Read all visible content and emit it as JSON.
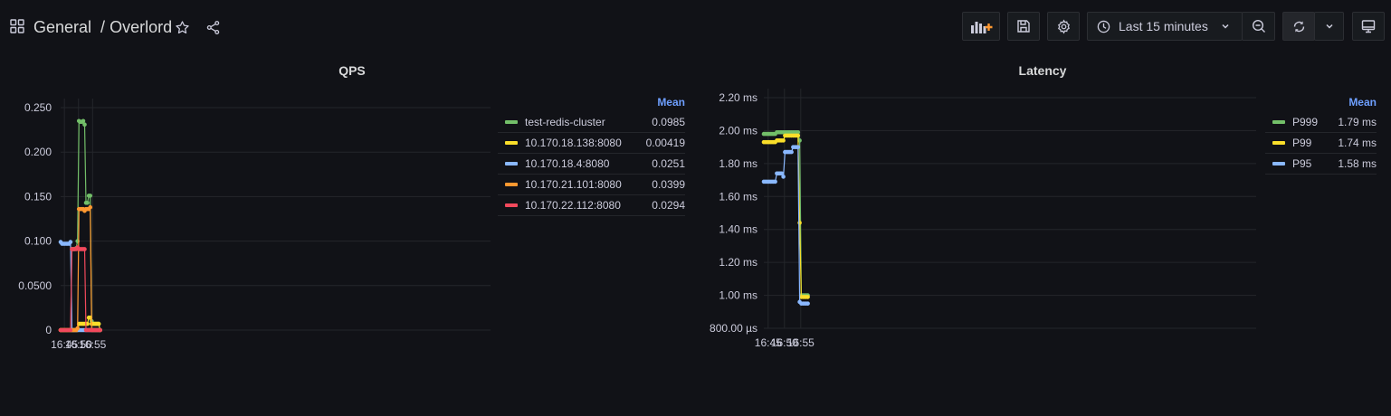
{
  "header": {
    "folder": "General",
    "separator": "/",
    "dashboard": "Overlord",
    "time_range": "Last 15 minutes",
    "icons": {
      "apps": "apps-grid-icon",
      "star": "star-icon",
      "share": "share-icon",
      "add_panel": "add-panel-icon",
      "save": "save-icon",
      "settings": "gear-icon",
      "clock": "clock-icon",
      "chevron": "chevron-down-icon",
      "zoom_out": "zoom-out-icon",
      "refresh": "refresh-icon",
      "tv": "tv-mode-icon"
    }
  },
  "panels": [
    {
      "title": "QPS",
      "legend_header": "Mean"
    },
    {
      "title": "Latency",
      "legend_header": "Mean"
    }
  ],
  "chart_data": [
    {
      "type": "line",
      "title": "QPS",
      "x": [
        "16:43:40",
        "16:44:10",
        "16:44:40",
        "16:45:10",
        "16:45:40",
        "16:46:10",
        "16:46:40",
        "16:47:10",
        "16:47:40",
        "16:48:10",
        "16:48:40",
        "16:49:10",
        "16:49:40",
        "16:50:10",
        "16:50:40",
        "16:51:10",
        "16:51:40",
        "16:52:10",
        "16:52:40",
        "16:53:10",
        "16:53:40",
        "16:54:10",
        "16:54:40",
        "16:55:10",
        "16:55:40",
        "16:56:10",
        "16:56:40",
        "16:57:10",
        "16:57:40"
      ],
      "x_ticks": [
        "16:45",
        "16:50",
        "16:55"
      ],
      "y_ticks": [
        "0",
        "0.0500",
        "0.100",
        "0.150",
        "0.200",
        "0.250"
      ],
      "ylim": [
        0,
        0.25
      ],
      "grid": true,
      "legend_position": "right",
      "series": [
        {
          "name": "test-redis-cluster",
          "mean": "0.0985",
          "color": "#73bf69",
          "values": [
            null,
            null,
            null,
            null,
            null,
            null,
            null,
            null,
            0.091,
            0.091,
            0.091,
            0.092,
            0.1,
            0.235,
            0.234,
            0.234,
            0.235,
            0.231,
            0.143,
            0.143,
            0.151,
            0.151,
            0.01,
            0.007,
            0.007,
            0.007,
            0.007,
            0.007,
            null
          ]
        },
        {
          "name": "10.170.18.138:8080",
          "mean": "0.00419",
          "color": "#fade2a",
          "values": [
            0,
            0,
            0,
            0,
            0,
            0,
            0,
            0,
            0,
            0,
            0,
            0,
            0,
            0.007,
            0.007,
            0.007,
            0.007,
            0.007,
            0.007,
            0.007,
            0.014,
            0.014,
            0.007,
            0.007,
            0.007,
            0.007,
            0.007,
            0.007,
            0
          ]
        },
        {
          "name": "10.170.18.4:8080",
          "mean": "0.0251",
          "color": "#8ab8ff",
          "values": [
            0.099,
            0.097,
            0.097,
            0.097,
            0.097,
            0.097,
            0.097,
            0.099,
            0,
            0,
            0,
            0,
            0,
            0,
            0,
            0,
            0,
            0,
            0,
            0,
            0,
            0,
            0,
            0,
            0,
            0,
            0,
            0,
            0
          ]
        },
        {
          "name": "10.170.21.101:8080",
          "mean": "0.0399",
          "color": "#ff9830",
          "values": [
            0,
            0,
            0,
            0,
            0,
            0,
            0,
            0,
            0,
            0,
            0,
            0,
            0.002,
            0.136,
            0.136,
            0.136,
            0.136,
            0.134,
            0.136,
            0.136,
            0.136,
            0.138,
            0,
            0,
            0,
            0,
            0,
            0,
            0
          ]
        },
        {
          "name": "10.170.22.112:8080",
          "mean": "0.0294",
          "color": "#f2495c",
          "values": [
            0,
            0,
            0,
            0,
            0,
            0,
            0,
            0,
            0.091,
            0.091,
            0.091,
            0.091,
            0.093,
            0.091,
            0.091,
            0.091,
            0.091,
            0.091,
            0,
            0,
            0,
            0,
            0,
            0,
            0,
            0,
            0,
            0,
            0
          ]
        }
      ]
    },
    {
      "type": "line",
      "title": "Latency",
      "x": [
        "16:43:40",
        "16:44:10",
        "16:44:40",
        "16:45:10",
        "16:45:40",
        "16:46:10",
        "16:46:40",
        "16:47:10",
        "16:47:40",
        "16:48:10",
        "16:48:40",
        "16:49:10",
        "16:49:40",
        "16:50:10",
        "16:50:40",
        "16:51:10",
        "16:51:40",
        "16:52:10",
        "16:52:40",
        "16:53:10",
        "16:53:40",
        "16:54:10",
        "16:54:40",
        "16:55:10",
        "16:55:40",
        "16:56:10",
        "16:56:40",
        "16:57:10",
        "16:57:40"
      ],
      "x_ticks": [
        "16:45",
        "16:50",
        "16:55"
      ],
      "y_ticks": [
        "800.00 µs",
        "1.00 ms",
        "1.20 ms",
        "1.40 ms",
        "1.60 ms",
        "1.80 ms",
        "2.00 ms",
        "2.20 ms"
      ],
      "ylim": [
        0.8,
        2.2
      ],
      "grid": true,
      "legend_position": "right",
      "series": [
        {
          "name": "P999",
          "mean": "1.79 ms",
          "color": "#73bf69",
          "values": [
            1.98,
            1.98,
            1.98,
            1.98,
            1.98,
            1.98,
            1.98,
            1.98,
            1.99,
            1.99,
            1.99,
            1.99,
            1.99,
            1.99,
            1.99,
            1.99,
            1.99,
            1.99,
            1.99,
            1.99,
            1.99,
            1.99,
            1.94,
            1.0,
            1.0,
            1.0,
            1.0,
            1.0,
            null
          ]
        },
        {
          "name": "P99",
          "mean": "1.74 ms",
          "color": "#fade2a",
          "values": [
            1.93,
            1.93,
            1.93,
            1.93,
            1.93,
            1.93,
            1.93,
            1.93,
            1.94,
            1.94,
            1.94,
            1.94,
            1.94,
            1.97,
            1.97,
            1.97,
            1.97,
            1.97,
            1.97,
            1.97,
            1.97,
            1.97,
            1.44,
            0.99,
            0.99,
            0.99,
            0.99,
            0.99,
            null
          ]
        },
        {
          "name": "P95",
          "mean": "1.58 ms",
          "color": "#8ab8ff",
          "values": [
            1.69,
            1.69,
            1.69,
            1.69,
            1.69,
            1.69,
            1.69,
            1.69,
            1.74,
            1.74,
            1.74,
            1.74,
            1.72,
            1.87,
            1.87,
            1.87,
            1.87,
            1.87,
            1.9,
            1.9,
            1.9,
            1.9,
            0.96,
            0.95,
            0.95,
            0.95,
            0.95,
            0.95,
            null
          ]
        }
      ]
    }
  ]
}
